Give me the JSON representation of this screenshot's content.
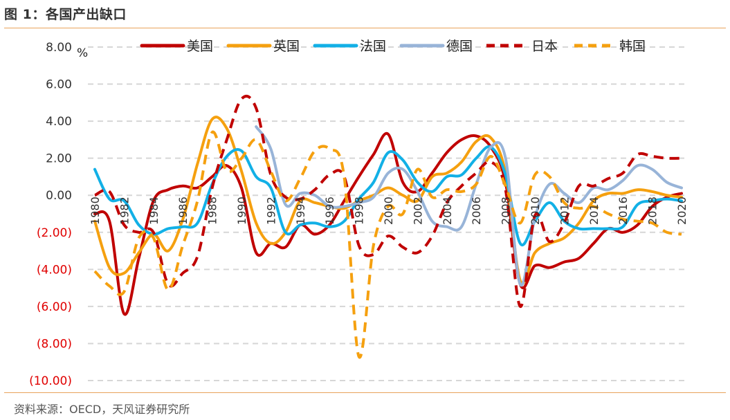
{
  "figure": {
    "title": "图 1：各国产出缺口",
    "source": "资料来源：OECD，天风证券研究所"
  },
  "chart_data": {
    "type": "line",
    "unit": "%",
    "ylim": [
      -10,
      8
    ],
    "xlim": [
      1980,
      2020
    ],
    "y_ticks": [
      {
        "value": 8,
        "label": "8.00",
        "color": "#333333"
      },
      {
        "value": 6,
        "label": "6.00",
        "color": "#333333"
      },
      {
        "value": 4,
        "label": "4.00",
        "color": "#333333"
      },
      {
        "value": 2,
        "label": "2.00",
        "color": "#333333"
      },
      {
        "value": 0,
        "label": "0.00",
        "color": "#333333"
      },
      {
        "value": -2,
        "label": "(2.00)",
        "color": "#E00000"
      },
      {
        "value": -4,
        "label": "(4.00)",
        "color": "#E00000"
      },
      {
        "value": -6,
        "label": "(6.00)",
        "color": "#E00000"
      },
      {
        "value": -8,
        "label": "(8.00)",
        "color": "#E00000"
      },
      {
        "value": -10,
        "label": "(10.00)",
        "color": "#E00000"
      }
    ],
    "x_ticks": [
      "1980",
      "1982",
      "1984",
      "1986",
      "1988",
      "1990",
      "1992",
      "1994",
      "1996",
      "1998",
      "2000",
      "2002",
      "2004",
      "2006",
      "2008",
      "2010",
      "2012",
      "2014",
      "2016",
      "2018",
      "2020"
    ],
    "grid": true,
    "legend_position": "top",
    "series": [
      {
        "name": "美国",
        "color": "#C00000",
        "dash": false,
        "x": [
          1980,
          1981,
          1982,
          1983,
          1984,
          1985,
          1986,
          1987,
          1988,
          1989,
          1990,
          1991,
          1992,
          1993,
          1994,
          1995,
          1996,
          1997,
          1998,
          1999,
          2000,
          2001,
          2002,
          2003,
          2004,
          2005,
          2006,
          2007,
          2008,
          2009,
          2010,
          2011,
          2012,
          2013,
          2014,
          2015,
          2016,
          2017,
          2018,
          2019,
          2020
        ],
        "y": [
          -1.0,
          -1.4,
          -6.4,
          -3.4,
          -0.3,
          0.3,
          0.5,
          0.4,
          1.0,
          1.6,
          0.4,
          -3.1,
          -2.6,
          -2.8,
          -1.6,
          -2.1,
          -1.6,
          -0.3,
          1.0,
          2.2,
          3.3,
          0.7,
          0.2,
          1.2,
          2.3,
          3.0,
          3.2,
          2.6,
          0.7,
          -4.8,
          -3.8,
          -3.9,
          -3.6,
          -3.4,
          -2.6,
          -1.8,
          -2.0,
          -1.6,
          -0.6,
          -0.1,
          0.1
        ]
      },
      {
        "name": "英国",
        "color": "#F5A00F",
        "dash": false,
        "x": [
          1980,
          1981,
          1982,
          1983,
          1984,
          1985,
          1986,
          1987,
          1988,
          1989,
          1990,
          1991,
          1992,
          1993,
          1994,
          1995,
          1996,
          1997,
          1998,
          1999,
          2000,
          2001,
          2002,
          2003,
          2004,
          2005,
          2006,
          2007,
          2008,
          2009,
          2010,
          2011,
          2012,
          2013,
          2014,
          2015,
          2016,
          2017,
          2018,
          2019,
          2020
        ],
        "y": [
          -1.4,
          -3.9,
          -4.2,
          -3.1,
          -2.1,
          -3.0,
          -1.3,
          1.7,
          4.1,
          3.6,
          1.3,
          -1.5,
          -2.6,
          -2.0,
          -0.3,
          -0.4,
          -0.6,
          -0.7,
          -0.3,
          0.0,
          0.4,
          0.0,
          -0.3,
          1.0,
          1.2,
          1.8,
          2.9,
          3.1,
          1.2,
          -4.6,
          -3.1,
          -2.6,
          -2.3,
          -1.5,
          -0.3,
          0.1,
          0.1,
          0.3,
          0.2,
          0.0,
          -0.1
        ]
      },
      {
        "name": "法国",
        "color": "#12B0E6",
        "dash": false,
        "x": [
          1980,
          1981,
          1982,
          1983,
          1984,
          1985,
          1986,
          1987,
          1988,
          1989,
          1990,
          1991,
          1992,
          1993,
          1994,
          1995,
          1996,
          1997,
          1998,
          1999,
          2000,
          2001,
          2002,
          2003,
          2004,
          2005,
          2006,
          2007,
          2008,
          2009,
          2010,
          2011,
          2012,
          2013,
          2014,
          2015,
          2016,
          2017,
          2018,
          2019,
          2020
        ],
        "y": [
          1.4,
          -0.2,
          -0.3,
          -1.6,
          -2.1,
          -1.8,
          -1.7,
          -1.5,
          0.6,
          2.1,
          2.4,
          1.0,
          0.4,
          -2.0,
          -1.6,
          -1.5,
          -1.7,
          -1.4,
          -0.2,
          0.7,
          2.3,
          1.9,
          0.7,
          0.2,
          1.0,
          1.1,
          2.0,
          2.6,
          1.1,
          -2.6,
          -1.4,
          -0.4,
          -1.4,
          -1.8,
          -1.8,
          -1.8,
          -1.7,
          -0.5,
          -0.3,
          -0.2,
          -0.3
        ]
      },
      {
        "name": "德国",
        "color": "#98B4D8",
        "dash": false,
        "x": [
          1991,
          1992,
          1993,
          1994,
          1995,
          1996,
          1997,
          1998,
          1999,
          2000,
          2001,
          2002,
          2003,
          2004,
          2005,
          2006,
          2007,
          2008,
          2009,
          2010,
          2011,
          2012,
          2013,
          2014,
          2015,
          2016,
          2017,
          2018,
          2019,
          2020
        ],
        "y": [
          3.7,
          2.5,
          -0.5,
          0.1,
          0.0,
          -0.6,
          -0.6,
          -0.4,
          -0.1,
          1.2,
          1.4,
          0.2,
          -1.4,
          -1.7,
          -1.7,
          0.6,
          2.6,
          2.0,
          -4.8,
          -1.2,
          0.6,
          0.1,
          -0.4,
          0.4,
          0.3,
          0.8,
          1.6,
          1.4,
          0.7,
          0.4
        ]
      },
      {
        "name": "日本",
        "color": "#C00000",
        "dash": true,
        "x": [
          1980,
          1981,
          1982,
          1983,
          1984,
          1985,
          1986,
          1987,
          1988,
          1989,
          1990,
          1991,
          1992,
          1993,
          1994,
          1995,
          1996,
          1997,
          1998,
          1999,
          2000,
          2001,
          2002,
          2003,
          2004,
          2005,
          2006,
          2007,
          2008,
          2009,
          2010,
          2011,
          2012,
          2013,
          2014,
          2015,
          2016,
          2017,
          2018,
          2019,
          2020
        ],
        "y": [
          0.0,
          0.2,
          -1.6,
          -2.0,
          -2.0,
          -4.8,
          -4.2,
          -3.3,
          0.4,
          3.0,
          5.2,
          4.7,
          1.1,
          -0.1,
          -0.2,
          0.3,
          1.1,
          1.0,
          -2.7,
          -3.2,
          -2.2,
          -2.8,
          -3.1,
          -2.2,
          -0.4,
          0.5,
          1.2,
          1.8,
          0.3,
          -6.0,
          -1.1,
          -2.5,
          -1.5,
          0.5,
          0.5,
          0.9,
          1.2,
          2.2,
          2.1,
          2.0,
          2.0
        ]
      },
      {
        "name": "韩国",
        "color": "#F5A00F",
        "dash": true,
        "x": [
          1980,
          1981,
          1982,
          1983,
          1984,
          1985,
          1986,
          1987,
          1988,
          1989,
          1990,
          1991,
          1992,
          1993,
          1994,
          1995,
          1996,
          1997,
          1998,
          1999,
          2000,
          2001,
          2002,
          2003,
          2004,
          2005,
          2006,
          2007,
          2008,
          2009,
          2010,
          2011,
          2012,
          2013,
          2014,
          2015,
          2016,
          2017,
          2018,
          2019,
          2020
        ],
        "y": [
          -4.1,
          -4.9,
          -5.2,
          -2.3,
          -2.3,
          -5.1,
          -2.7,
          -0.3,
          3.4,
          1.3,
          2.0,
          3.0,
          1.3,
          -0.3,
          0.9,
          2.4,
          2.5,
          1.0,
          -8.7,
          -2.7,
          -0.6,
          -1.0,
          1.4,
          -0.1,
          0.3,
          0.2,
          0.6,
          2.1,
          0.5,
          -1.5,
          1.1,
          1.0,
          -0.4,
          -0.7,
          -0.6,
          -1.0,
          -1.3,
          -1.4,
          -1.5,
          -2.0,
          -2.1
        ]
      }
    ]
  }
}
